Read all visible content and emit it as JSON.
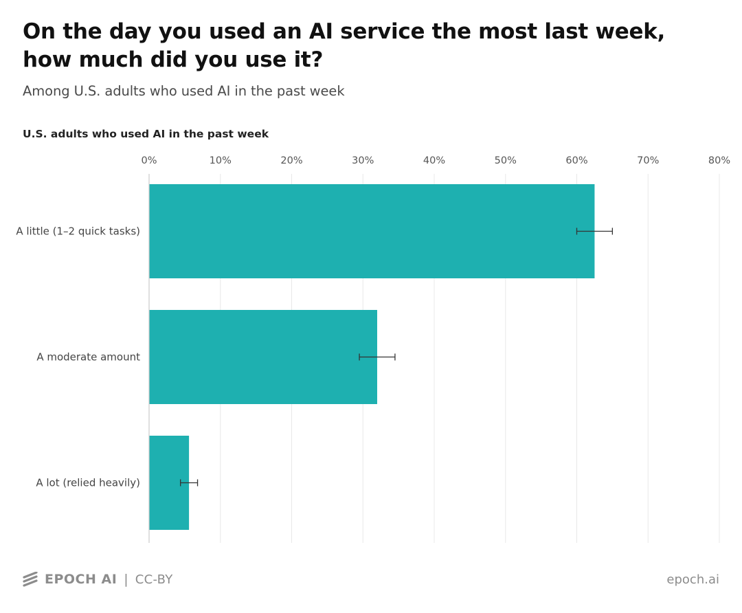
{
  "title": "On the day you used an AI service the most last week, how much did you use it?",
  "subtitle": "Among U.S. adults who used AI in the past week",
  "chart_heading": "U.S. adults who used AI in the past week",
  "colors": {
    "bar": "#1eb0b0",
    "grid": "#e8e8e8",
    "axis": "#cccccc",
    "error_bar": "#333333"
  },
  "chart_data": {
    "type": "bar",
    "orientation": "horizontal",
    "categories": [
      "A little (1–2 quick tasks)",
      "A moderate amount",
      "A lot (relied heavily)"
    ],
    "values": [
      62.5,
      32.0,
      5.6
    ],
    "error_low": [
      60.0,
      29.5,
      4.4
    ],
    "error_high": [
      65.0,
      34.5,
      6.8
    ],
    "x_ticks": [
      "0%",
      "10%",
      "20%",
      "30%",
      "40%",
      "50%",
      "60%",
      "70%",
      "80%"
    ],
    "xlim": [
      0,
      80
    ],
    "grid": true
  },
  "footer": {
    "brand": "EPOCH AI",
    "separator": "|",
    "license": "CC-BY",
    "site": "epoch.ai",
    "logo_icon": "epoch-stripes-icon"
  }
}
